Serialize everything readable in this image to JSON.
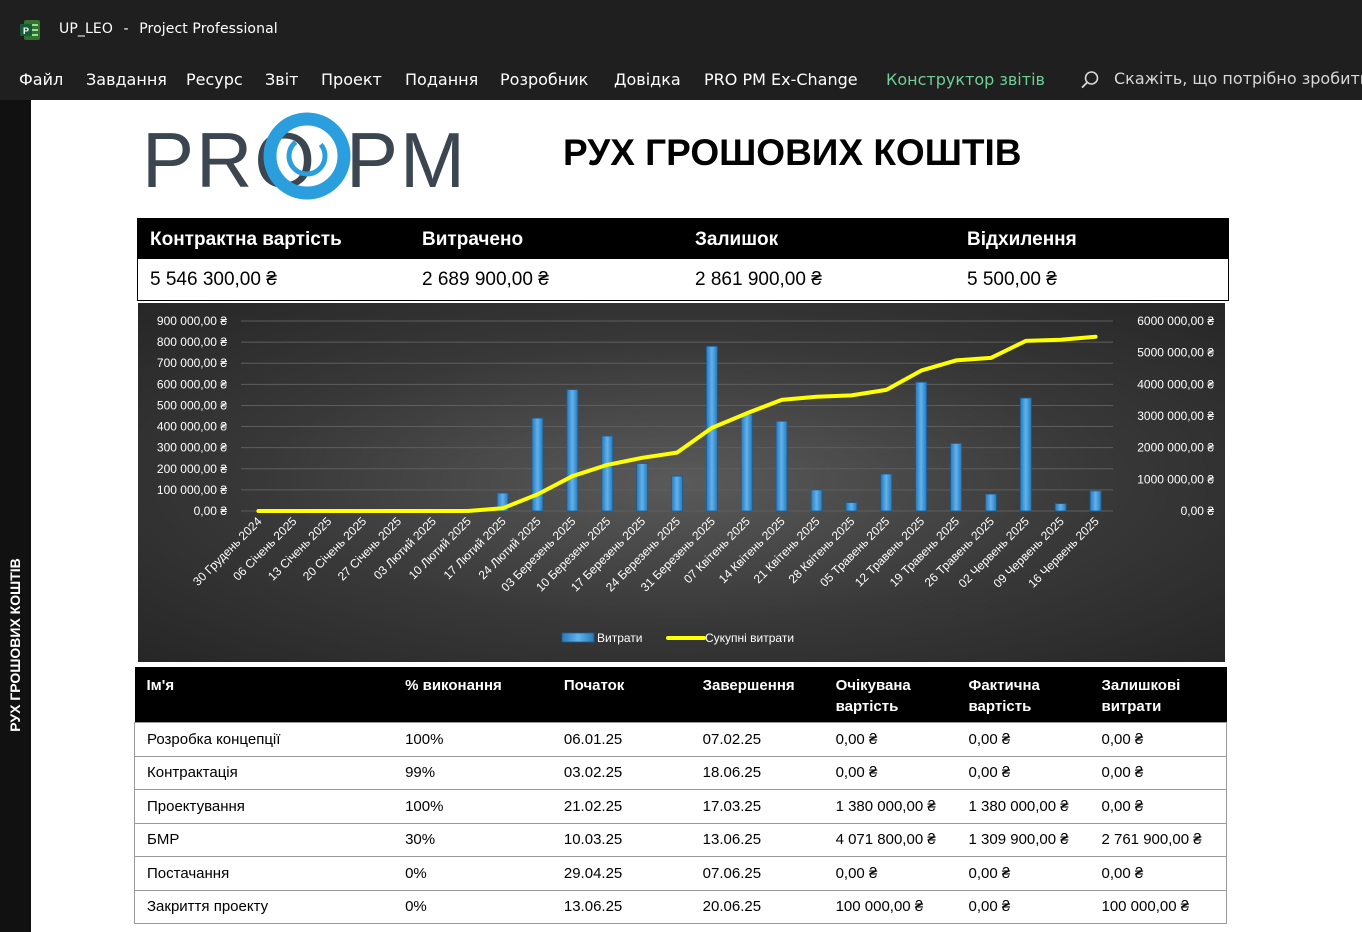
{
  "window": {
    "app_title": "UP_LEO",
    "separator": "-",
    "app_name": "Project Professional"
  },
  "menu": {
    "items": [
      "Файл",
      "Завдання",
      "Ресурс",
      "Звіт",
      "Проект",
      "Подання",
      "Розробник",
      "Довідка",
      "PRO PM Ex-Change",
      "Конструктор звітів"
    ],
    "active_index": 9,
    "search_placeholder": "Скажіть, що потрібно зробити"
  },
  "sidebar": {
    "label": "РУХ ГРОШОВИХ КОШТІВ"
  },
  "logo": {
    "text_left": "PRO",
    "text_right": "PM"
  },
  "report": {
    "title": "РУХ ГРОШОВИХ КОШТІВ"
  },
  "kpi": {
    "labels": [
      "Контрактна вартість",
      "Витрачено",
      "Залишок",
      "Відхилення"
    ],
    "values": [
      "5 546 300,00 ₴",
      "2 689 900,00 ₴",
      "2 861 900,00 ₴",
      "5 500,00 ₴"
    ]
  },
  "chart_data": {
    "type": "bar",
    "categories": [
      "30 Грудень 2024",
      "06 Січень 2025",
      "13 Січень 2025",
      "20 Січень 2025",
      "27 Січень 2025",
      "03 Лютий 2025",
      "10 Лютий 2025",
      "17 Лютий 2025",
      "24 Лютий 2025",
      "03 Березень 2025",
      "10 Березень 2025",
      "17 Березень 2025",
      "24 Березень 2025",
      "31 Березень 2025",
      "07 Квітень 2025",
      "14 Квітень 2025",
      "21 Квітень 2025",
      "28 Квітень 2025",
      "05 Травень 2025",
      "12 Травень 2025",
      "19 Травень 2025",
      "26 Травень 2025",
      "02 Червень 2025",
      "09 Червень 2025",
      "16 Червень 2025"
    ],
    "series": [
      {
        "name": "Витрати",
        "type": "bar",
        "axis": "left",
        "color": "#3a8fd1",
        "values": [
          0,
          0,
          0,
          0,
          0,
          0,
          0,
          85000,
          440000,
          575000,
          355000,
          225000,
          165000,
          780000,
          460000,
          425000,
          100000,
          40000,
          175000,
          610000,
          320000,
          80000,
          535000,
          35000,
          95000
        ]
      },
      {
        "name": "Сукупні витрати",
        "type": "line",
        "axis": "right",
        "color": "#ffff00",
        "values": [
          0,
          0,
          0,
          0,
          0,
          0,
          0,
          85000,
          525000,
          1100000,
          1455000,
          1680000,
          1845000,
          2625000,
          3085000,
          3510000,
          3610000,
          3650000,
          3825000,
          4435000,
          4755000,
          4835000,
          5370000,
          5405000,
          5500000
        ]
      }
    ],
    "left_axis": {
      "ylim": [
        0,
        900000
      ],
      "ticks": [
        "900 000,00 ₴",
        "800 000,00 ₴",
        "700 000,00 ₴",
        "600 000,00 ₴",
        "500 000,00 ₴",
        "400 000,00 ₴",
        "300 000,00 ₴",
        "200 000,00 ₴",
        "100 000,00 ₴",
        "0,00 ₴"
      ]
    },
    "right_axis": {
      "ylim": [
        0,
        6000000
      ],
      "ticks": [
        "6000 000,00 ₴",
        "5000 000,00 ₴",
        "4000 000,00 ₴",
        "3000 000,00 ₴",
        "2000 000,00 ₴",
        "1000 000,00 ₴",
        "0,00 ₴"
      ]
    },
    "legend": {
      "placement": "bottom",
      "items": [
        "Витрати",
        "Сукупні витрати"
      ]
    },
    "grid": true
  },
  "table": {
    "headers": [
      "Ім'я",
      "% виконання",
      "Початок",
      "Завершення",
      "Очікувана вартість",
      "Фактична вартість",
      "Залишкові витрати"
    ],
    "header_lines": [
      [
        "Ім'я"
      ],
      [
        "% виконання"
      ],
      [
        "Початок"
      ],
      [
        "Завершення"
      ],
      [
        "Очікувана",
        "вартість"
      ],
      [
        "Фактична",
        "вартість"
      ],
      [
        "Залишкові",
        "витрати"
      ]
    ],
    "rows": [
      [
        "Розробка концепції",
        "100%",
        "06.01.25",
        "07.02.25",
        "0,00 ₴",
        "0,00 ₴",
        "0,00 ₴"
      ],
      [
        "Контрактація",
        "99%",
        "03.02.25",
        "18.06.25",
        "0,00 ₴",
        "0,00 ₴",
        "0,00 ₴"
      ],
      [
        "Проектування",
        "100%",
        "21.02.25",
        "17.03.25",
        "1 380 000,00 ₴",
        "1 380 000,00 ₴",
        "0,00 ₴"
      ],
      [
        "БМР",
        "30%",
        "10.03.25",
        "13.06.25",
        "4 071 800,00 ₴",
        "1 309 900,00 ₴",
        "2 761 900,00 ₴"
      ],
      [
        "Постачання",
        "0%",
        "29.04.25",
        "07.06.25",
        "0,00 ₴",
        "0,00 ₴",
        "0,00 ₴"
      ],
      [
        "Закриття проекту",
        "0%",
        "13.06.25",
        "20.06.25",
        "100 000,00 ₴",
        "0,00 ₴",
        "100 000,00 ₴"
      ]
    ]
  }
}
